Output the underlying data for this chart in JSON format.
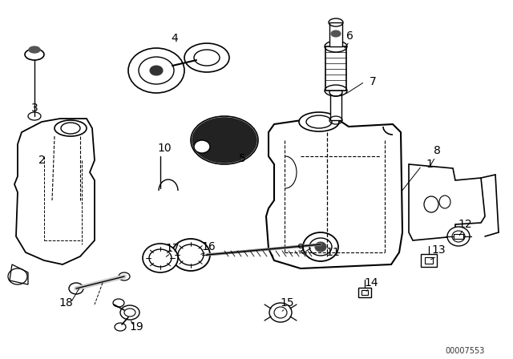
{
  "background_color": "#ffffff",
  "line_color": "#000000",
  "diagram_id": "00007553",
  "figsize": [
    6.4,
    4.48
  ],
  "dpi": 100
}
